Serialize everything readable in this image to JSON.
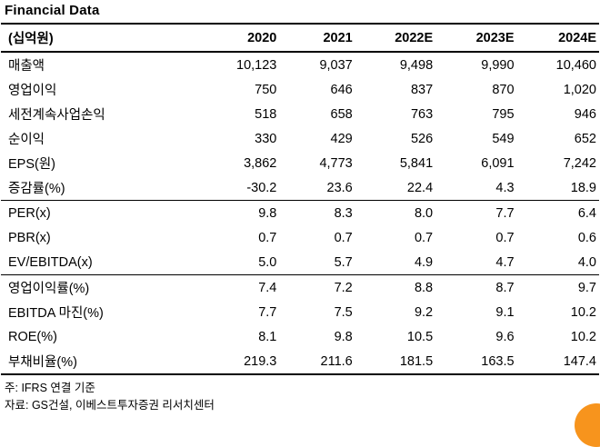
{
  "title": "Financial Data",
  "table": {
    "unit_label": "(십억원)",
    "columns": [
      "2020",
      "2021",
      "2022E",
      "2023E",
      "2024E"
    ],
    "rows": [
      {
        "label": "매출액",
        "values": [
          "10,123",
          "9,037",
          "9,498",
          "9,990",
          "10,460"
        ]
      },
      {
        "label": "영업이익",
        "values": [
          "750",
          "646",
          "837",
          "870",
          "1,020"
        ]
      },
      {
        "label": "세전계속사업손익",
        "values": [
          "518",
          "658",
          "763",
          "795",
          "946"
        ]
      },
      {
        "label": "순이익",
        "values": [
          "330",
          "429",
          "526",
          "549",
          "652"
        ]
      },
      {
        "label": "EPS(원)",
        "values": [
          "3,862",
          "4,773",
          "5,841",
          "6,091",
          "7,242"
        ]
      },
      {
        "label": "증감률(%)",
        "values": [
          "-30.2",
          "23.6",
          "22.4",
          "4.3",
          "18.9"
        ]
      },
      {
        "label": "PER(x)",
        "values": [
          "9.8",
          "8.3",
          "8.0",
          "7.7",
          "6.4"
        ]
      },
      {
        "label": "PBR(x)",
        "values": [
          "0.7",
          "0.7",
          "0.7",
          "0.7",
          "0.6"
        ]
      },
      {
        "label": "EV/EBITDA(x)",
        "values": [
          "5.0",
          "5.7",
          "4.9",
          "4.7",
          "4.0"
        ]
      },
      {
        "label": "영업이익률(%)",
        "values": [
          "7.4",
          "7.2",
          "8.8",
          "8.7",
          "9.7"
        ]
      },
      {
        "label": "EBITDA 마진(%)",
        "values": [
          "7.7",
          "7.5",
          "9.2",
          "9.1",
          "10.2"
        ]
      },
      {
        "label": "ROE(%)",
        "values": [
          "8.1",
          "9.8",
          "10.5",
          "9.6",
          "10.2"
        ]
      },
      {
        "label": "부채비율(%)",
        "values": [
          "219.3",
          "211.6",
          "181.5",
          "163.5",
          "147.4"
        ]
      }
    ]
  },
  "footnotes": {
    "note": "주: IFRS 연결 기준",
    "source": "자료: GS건설, 이베스트투자증권 리서치센터"
  },
  "decorations": {
    "circle_color": "#f7941d"
  }
}
